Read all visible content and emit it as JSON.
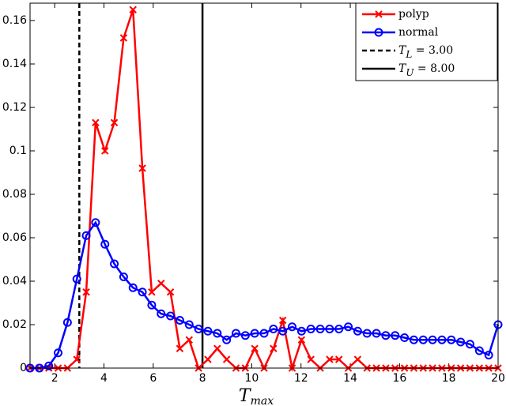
{
  "chart_data": {
    "type": "line",
    "x": [
      1,
      1.38,
      1.76,
      2.14,
      2.52,
      2.9,
      3.28,
      3.66,
      4.04,
      4.42,
      4.8,
      5.18,
      5.56,
      5.94,
      6.32,
      6.7,
      7.08,
      7.46,
      7.84,
      8.22,
      8.6,
      8.98,
      9.36,
      9.74,
      10.12,
      10.5,
      10.88,
      11.26,
      11.64,
      12.02,
      12.4,
      12.78,
      13.16,
      13.54,
      13.92,
      14.3,
      14.68,
      15.06,
      15.44,
      15.82,
      16.2,
      16.58,
      16.96,
      17.34,
      17.72,
      18.1,
      18.48,
      18.86,
      19.24,
      19.62,
      20
    ],
    "series": [
      {
        "name": "polyp",
        "color": "#ff0000",
        "marker": "x",
        "values": [
          0,
          0,
          0,
          0,
          0,
          0.004,
          0.035,
          0.113,
          0.1,
          0.113,
          0.152,
          0.165,
          0.092,
          0.035,
          0.039,
          0.035,
          0.009,
          0.013,
          0,
          0.004,
          0.009,
          0.004,
          0,
          0,
          0.009,
          0,
          0.009,
          0.022,
          0,
          0.013,
          0.004,
          0,
          0.004,
          0.004,
          0,
          0.004,
          0,
          0,
          0,
          0,
          0,
          0,
          0,
          0,
          0,
          0,
          0,
          0,
          0,
          0,
          0
        ]
      },
      {
        "name": "normal",
        "color": "#0000ff",
        "marker": "o",
        "values": [
          0,
          0,
          0.001,
          0.007,
          0.021,
          0.041,
          0.061,
          0.067,
          0.057,
          0.048,
          0.042,
          0.037,
          0.035,
          0.029,
          0.025,
          0.024,
          0.022,
          0.02,
          0.018,
          0.017,
          0.016,
          0.013,
          0.016,
          0.015,
          0.016,
          0.016,
          0.018,
          0.017,
          0.019,
          0.017,
          0.018,
          0.018,
          0.018,
          0.018,
          0.019,
          0.017,
          0.016,
          0.016,
          0.015,
          0.015,
          0.014,
          0.013,
          0.013,
          0.013,
          0.013,
          0.013,
          0.012,
          0.011,
          0.008,
          0.006,
          0.02
        ]
      }
    ],
    "vlines": [
      {
        "value": 3,
        "style": "dashed",
        "color": "#000000",
        "label": {
          "base": "T",
          "sub": "L",
          "rest": " = 3.00"
        }
      },
      {
        "value": 8,
        "style": "solid",
        "color": "#000000",
        "label": {
          "base": "T",
          "sub": "U",
          "rest": " = 8.00"
        }
      }
    ],
    "x_label": {
      "base": "T",
      "sub": "max"
    },
    "xlim": [
      1,
      20
    ],
    "xticks": [
      2,
      4,
      6,
      8,
      10,
      12,
      14,
      16,
      18,
      20
    ],
    "ylim": [
      0,
      0.168
    ],
    "yticks": [
      0,
      0.02,
      0.04,
      0.06,
      0.08,
      0.1,
      0.12,
      0.14,
      0.16
    ],
    "grid": false,
    "legend": "upper-right"
  }
}
